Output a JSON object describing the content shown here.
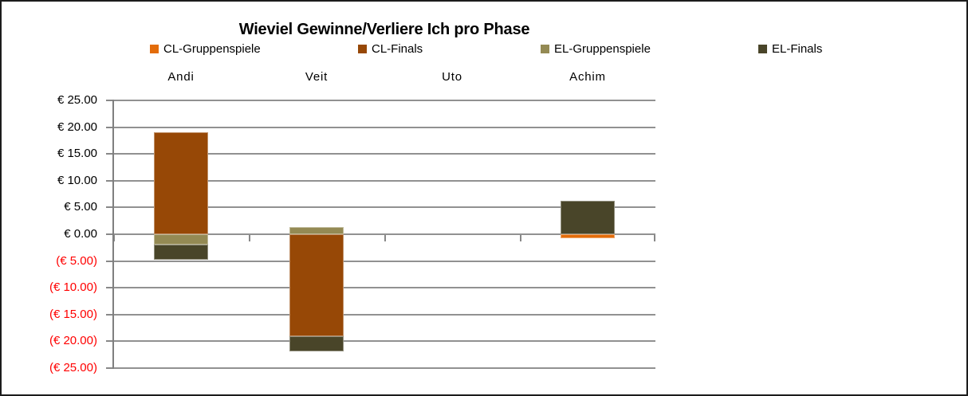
{
  "chart_data": {
    "type": "bar",
    "stacked": true,
    "title": "Wieviel Gewinne/Verliere Ich pro Phase",
    "categories": [
      "Andi",
      "Veit",
      "Uto",
      "Achim"
    ],
    "series": [
      {
        "name": "CL-Gruppenspiele",
        "color": "#E36C0A",
        "values": [
          0,
          0,
          0,
          -0.8
        ]
      },
      {
        "name": "CL-Finals",
        "color": "#974806",
        "values": [
          19.0,
          -19.0,
          0,
          0
        ]
      },
      {
        "name": "EL-Gruppenspiele",
        "color": "#948A54",
        "values": [
          -1.9,
          1.4,
          0,
          0
        ]
      },
      {
        "name": "EL-Finals",
        "color": "#494529",
        "values": [
          -2.8,
          -2.9,
          0,
          6.3
        ]
      }
    ],
    "ylim": [
      -25,
      25
    ],
    "ytick_step": 5,
    "ytick_labels": [
      "€ 25.00",
      "€ 20.00",
      "€ 15.00",
      "€ 10.00",
      "€ 5.00",
      "€ 0.00",
      "(€ 5.00)",
      "(€ 10.00)",
      "(€ 15.00)",
      "(€ 20.00)",
      "(€ 25.00)"
    ],
    "negative_label_color": "#FF0000",
    "positive_label_color": "#000000",
    "gridline_color": "#919191",
    "axis_color": "#7F7F7F",
    "grid": true,
    "legend_position": "top",
    "currency": "€"
  }
}
